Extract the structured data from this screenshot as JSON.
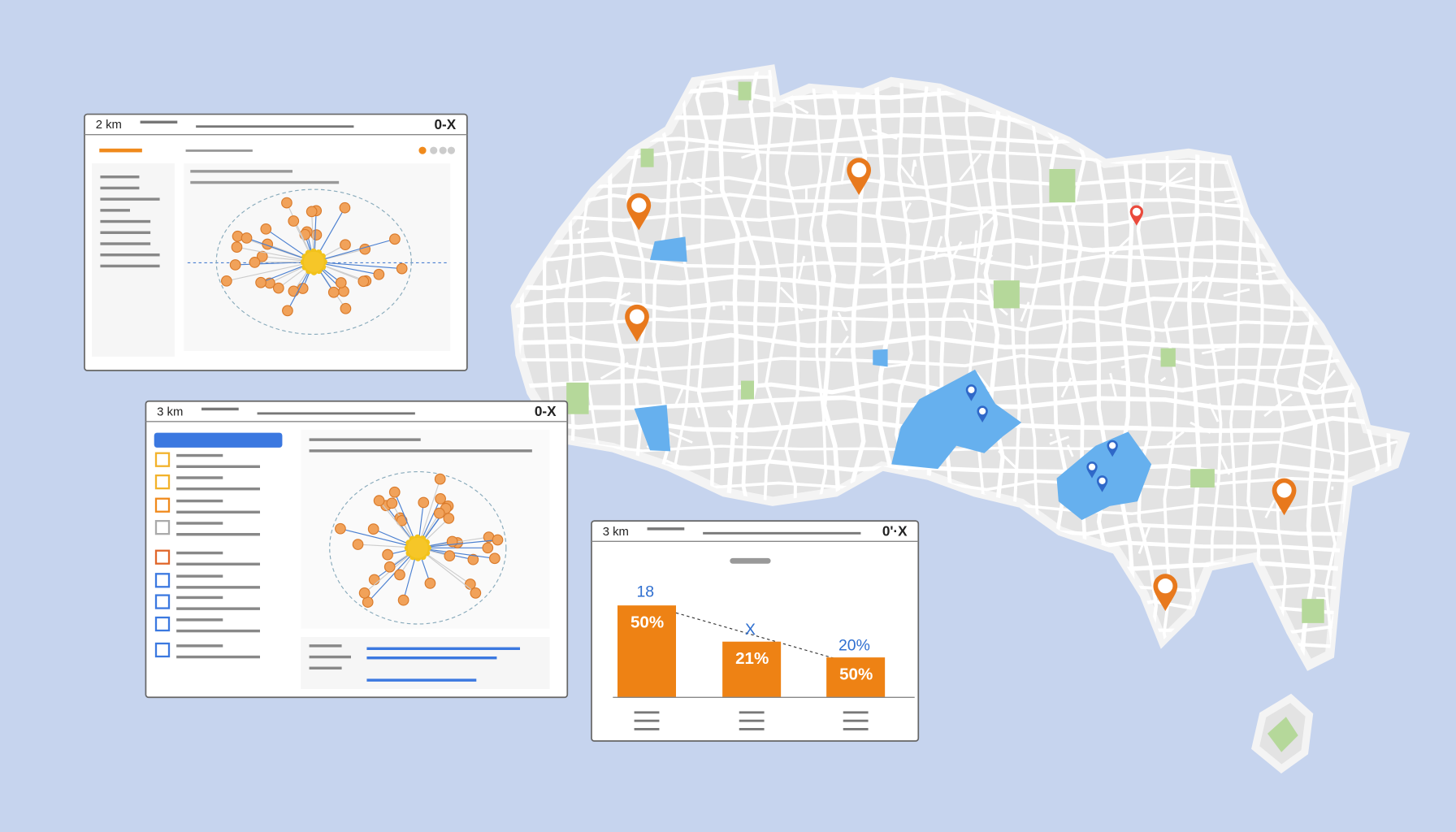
{
  "windows": [
    {
      "scale": "2 km",
      "controls": "0-X"
    },
    {
      "scale": "3 km",
      "controls": "0-X"
    },
    {
      "scale": "3 km",
      "controls": "0'·X",
      "chart": {
        "labels": [
          "18",
          "X",
          "20%"
        ],
        "bar_labels": [
          "50%",
          "21%",
          "50%"
        ]
      }
    }
  ]
}
